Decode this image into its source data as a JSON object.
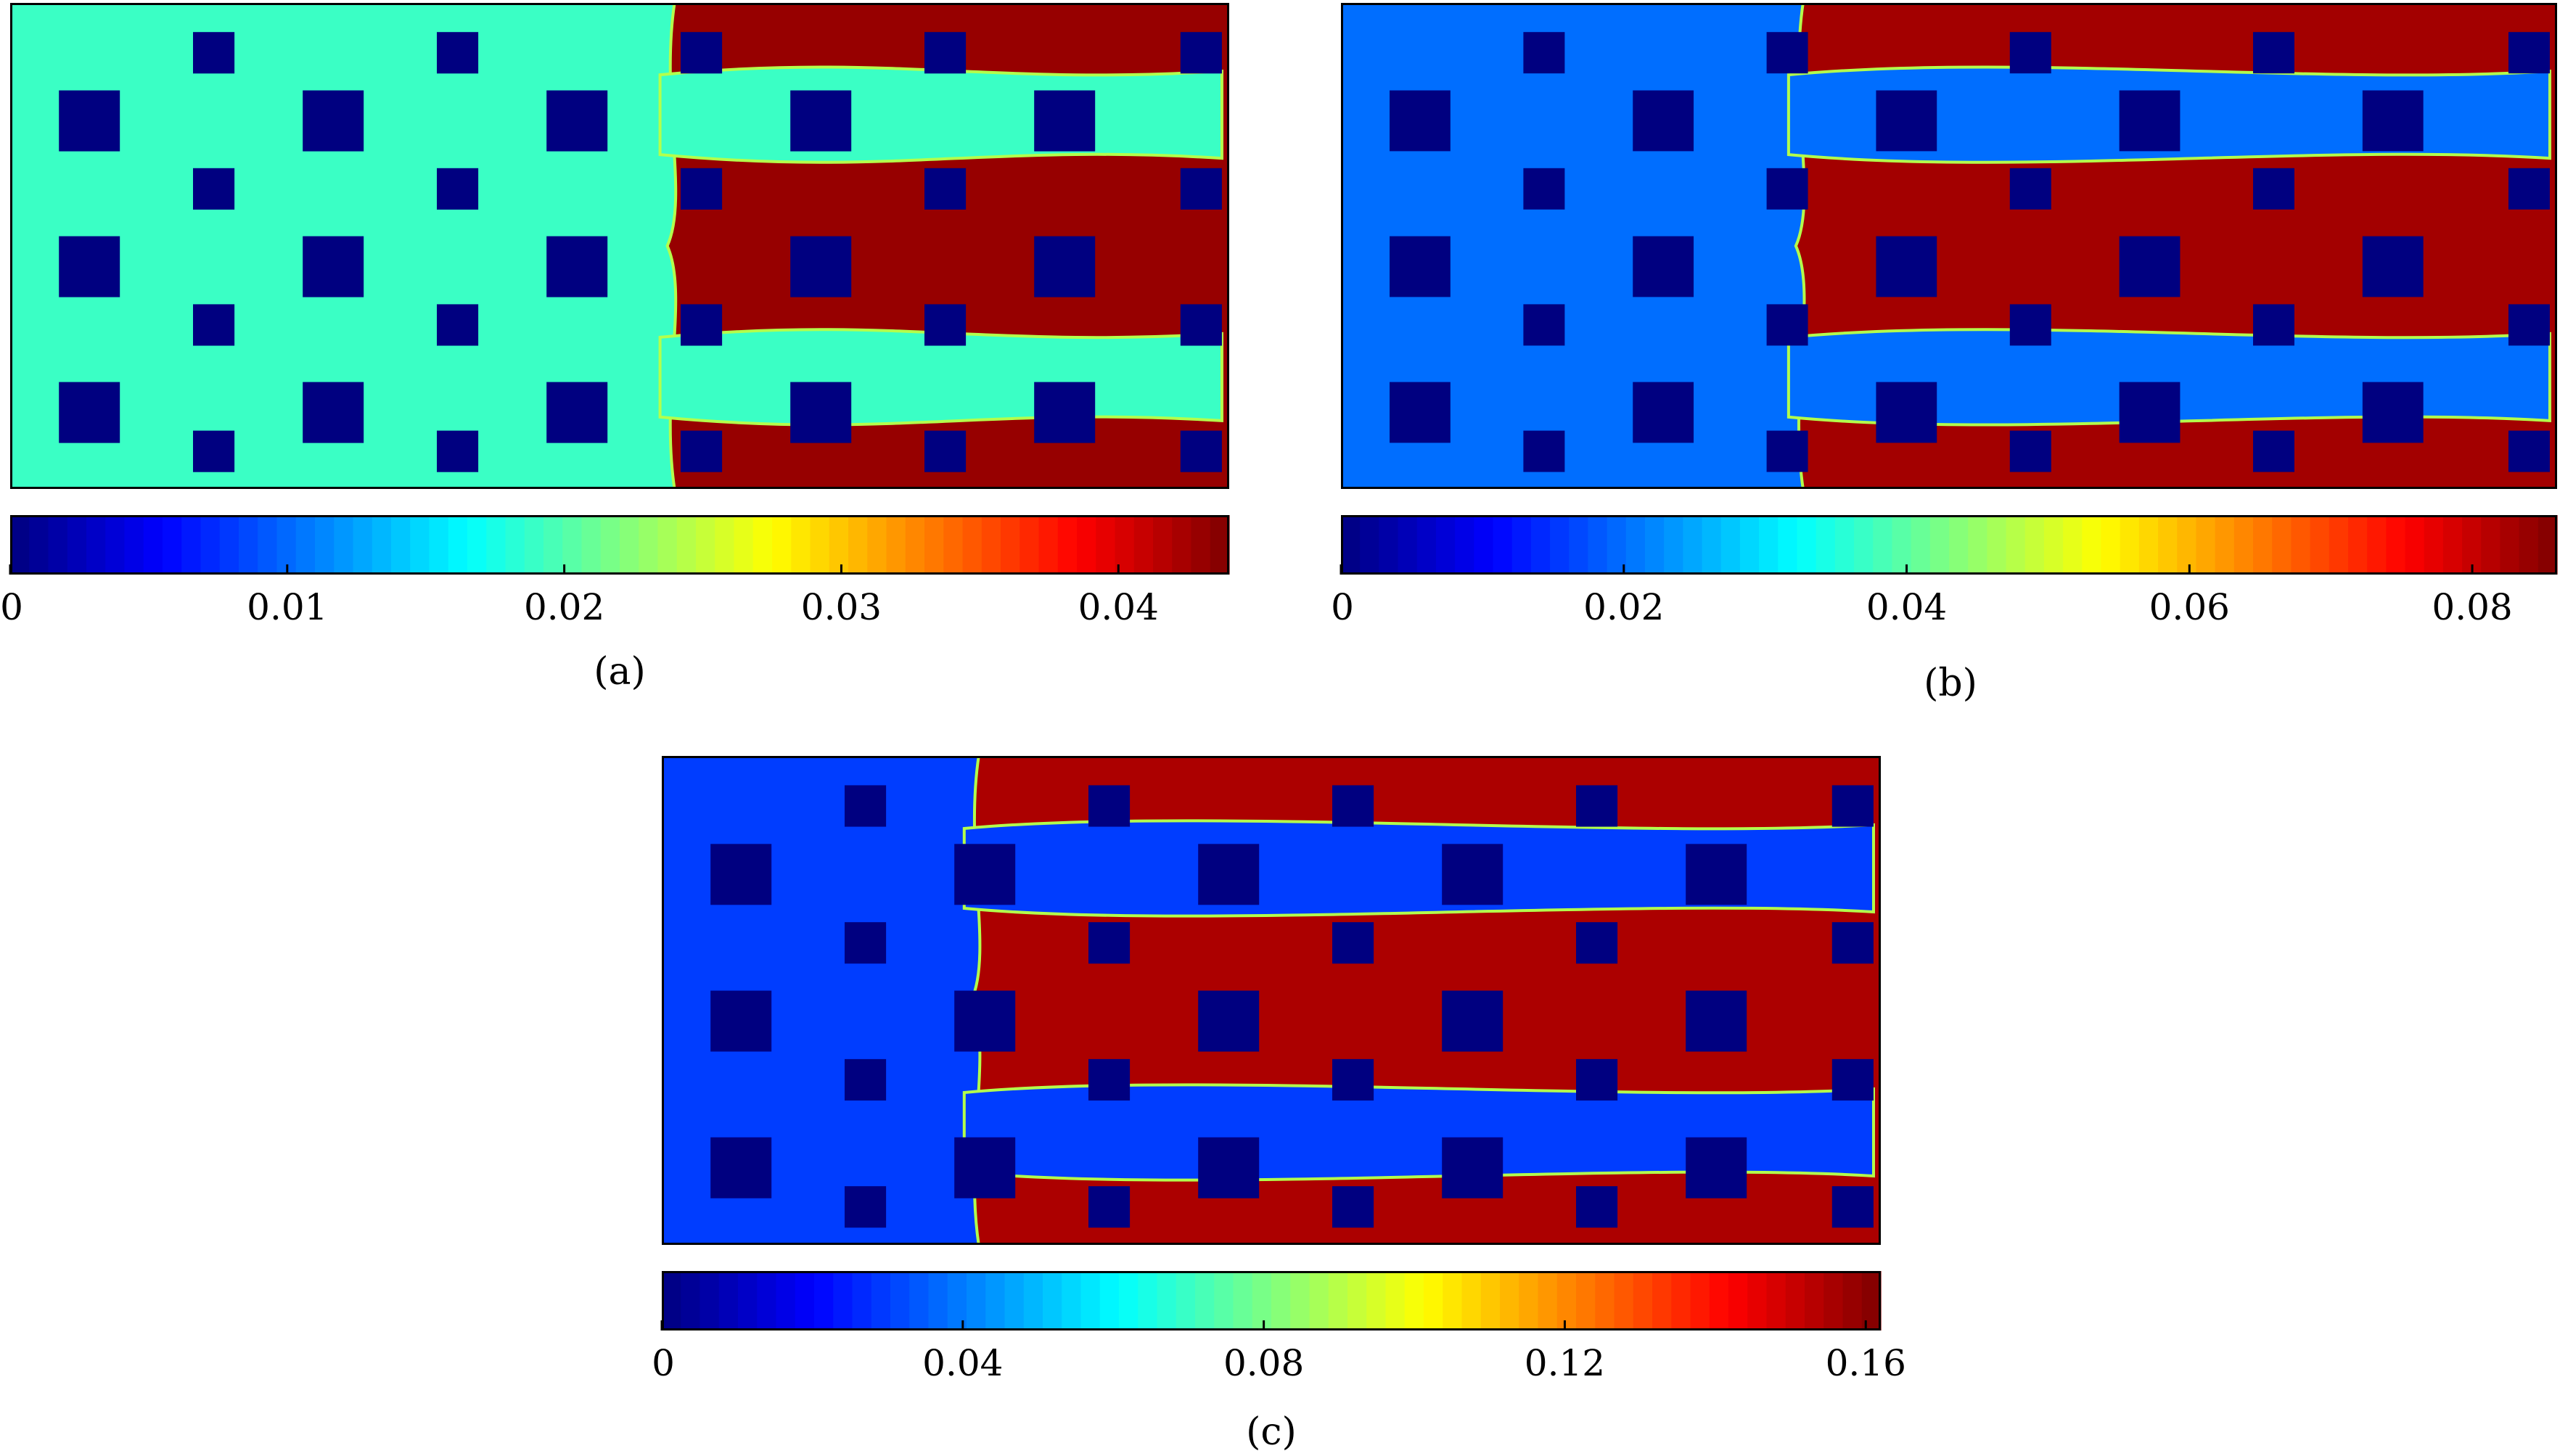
{
  "figure": {
    "panels": [
      {
        "id": "a",
        "caption": "(a)",
        "colorbar": {
          "min": 0,
          "max": 0.044,
          "ticks": [
            "0",
            "0.01",
            "0.02",
            "0.03",
            "0.04"
          ],
          "tick_values": [
            0,
            0.01,
            0.02,
            0.03,
            0.04
          ]
        },
        "background_level": 0.019,
        "invaded_level": 0.043,
        "front_position": 0.545
      },
      {
        "id": "b",
        "caption": "(b)",
        "colorbar": {
          "min": 0,
          "max": 0.086,
          "ticks": [
            "0",
            "0.02",
            "0.04",
            "0.06",
            "0.08"
          ],
          "tick_values": [
            0,
            0.02,
            0.04,
            0.06,
            0.08
          ]
        },
        "background_level": 0.02,
        "invaded_level": 0.083,
        "front_position": 0.38
      },
      {
        "id": "c",
        "caption": "(c)",
        "colorbar": {
          "min": 0,
          "max": 0.162,
          "ticks": [
            "0",
            "0.04",
            "0.08",
            "0.12",
            "0.16"
          ],
          "tick_values": [
            0,
            0.04,
            0.08,
            0.12,
            0.16
          ]
        },
        "background_level": 0.03,
        "invaded_level": 0.155,
        "front_position": 0.26
      }
    ],
    "colormap": "jet"
  }
}
